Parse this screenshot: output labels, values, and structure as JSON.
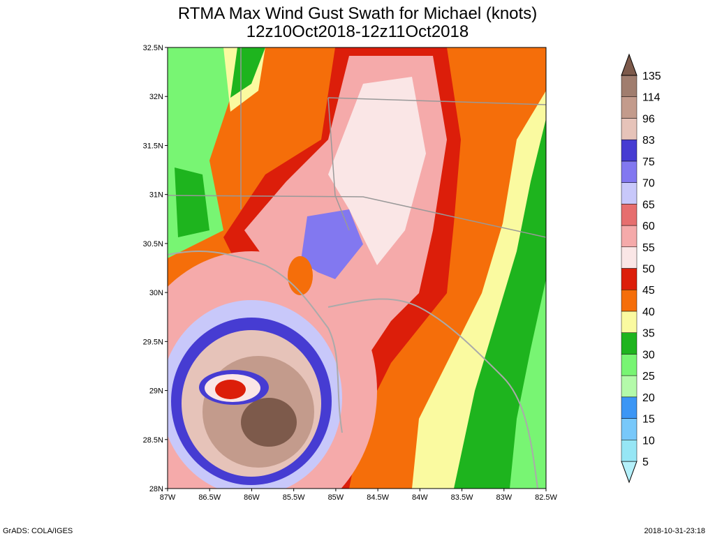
{
  "title": [
    "RTMA Max Wind Gust Swath for Michael (knots)",
    "12z10Oct2018-12z11Oct2018"
  ],
  "lat_labels": [
    "32.5N",
    "32N",
    "31.5N",
    "31N",
    "30.5N",
    "30N",
    "29.5N",
    "29N",
    "28.5N",
    "28N"
  ],
  "lon_labels": [
    "87W",
    "86.5W",
    "86W",
    "85.5W",
    "85W",
    "84.5W",
    "84W",
    "83.5W",
    "83W",
    "82.5W"
  ],
  "colorbar": {
    "levels": [
      "5",
      "10",
      "15",
      "20",
      "25",
      "30",
      "35",
      "40",
      "45",
      "50",
      "55",
      "60",
      "65",
      "70",
      "75",
      "83",
      "96",
      "114",
      "135"
    ],
    "colors": [
      "#b4f0fa",
      "#96e6f5",
      "#78c8fa",
      "#3c96f5",
      "#b4faaa",
      "#78f573",
      "#1eb41e",
      "#fafaa0",
      "#f56e0a",
      "#dc1e0a",
      "#fae6e6",
      "#f5aaaa",
      "#e66e6e",
      "#c8c8fa",
      "#8278f0",
      "#463cd2",
      "#e6c3b9",
      "#c39b8c",
      "#a07d6e",
      "#7d5a4b"
    ]
  },
  "footer": {
    "left": "GrADS: COLA/IGES",
    "right": "2018-10-31-23:18"
  }
}
